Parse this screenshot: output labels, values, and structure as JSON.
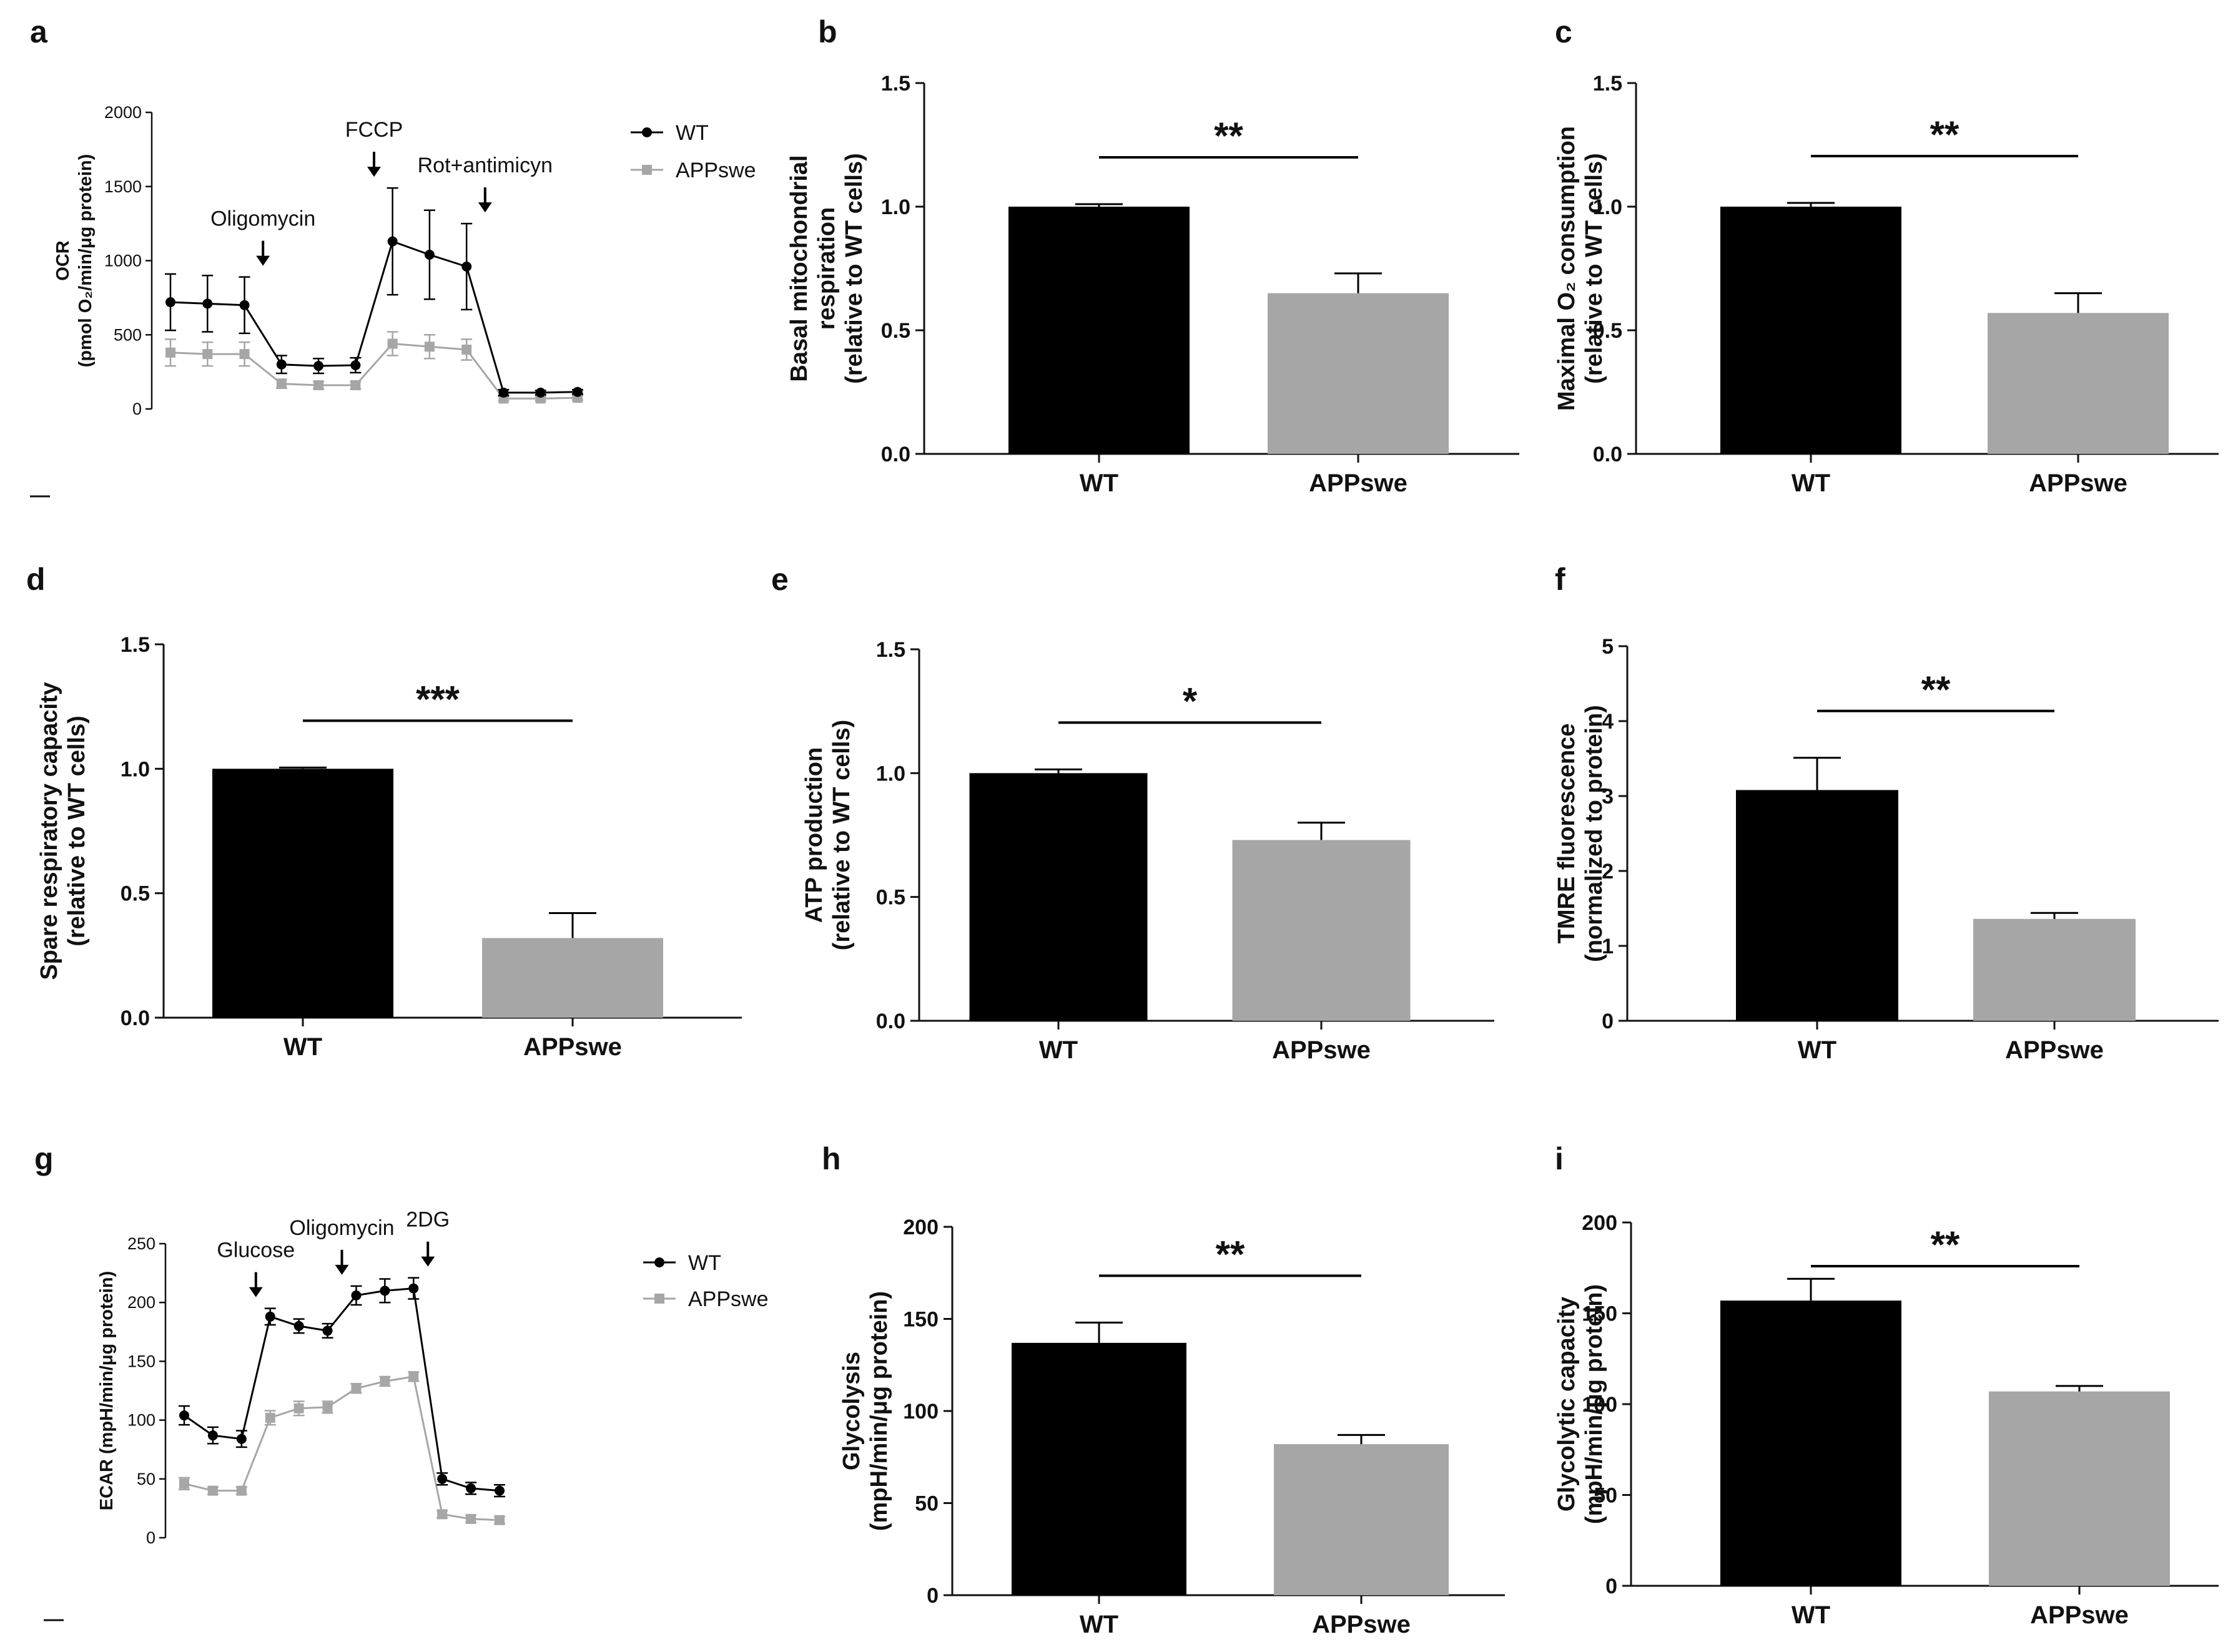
{
  "colors": {
    "wt": "#000000",
    "appswe": "#a6a6a6",
    "axis": "#111111"
  },
  "charts": [
    {
      "type": "line",
      "panel": "a",
      "ylabel_line1": "OCR",
      "ylabel_line2": "(pmol O₂/min/μg protein)",
      "ylim": [
        0,
        2000
      ],
      "yticks": [
        "0",
        "500",
        "1000",
        "1500",
        "2000"
      ],
      "x": [
        1,
        2,
        3,
        4,
        5,
        6,
        7,
        8,
        9,
        10,
        11,
        12
      ],
      "series": [
        {
          "name": "WT",
          "values": [
            720,
            710,
            700,
            300,
            290,
            295,
            1130,
            1040,
            960,
            110,
            110,
            115
          ],
          "errors": [
            190,
            190,
            190,
            60,
            50,
            50,
            360,
            300,
            290,
            20,
            15,
            15
          ]
        },
        {
          "name": "APPswe",
          "values": [
            380,
            370,
            370,
            170,
            160,
            160,
            440,
            420,
            400,
            70,
            70,
            75
          ],
          "errors": [
            90,
            80,
            80,
            30,
            25,
            25,
            80,
            80,
            70,
            15,
            15,
            15
          ]
        }
      ],
      "annotations": [
        {
          "label": "Oligomycin",
          "after_point": 3
        },
        {
          "label": "FCCP",
          "after_point": 6
        },
        {
          "label": "Rot+antimicyn",
          "after_point": 9
        }
      ]
    },
    {
      "type": "bar",
      "panel": "b",
      "ylabel": [
        "Basal mitochondrial",
        "respiration",
        "(relative to WT cells)"
      ],
      "categories": [
        "WT",
        "APPswe"
      ],
      "values": [
        1.0,
        0.65
      ],
      "errors": [
        0.01,
        0.08
      ],
      "ylim": [
        0,
        1.5
      ],
      "yticks": [
        "0.0",
        "0.5",
        "1.0",
        "1.5"
      ],
      "significance": "**"
    },
    {
      "type": "bar",
      "panel": "c",
      "ylabel": [
        "Maximal O₂ consumption",
        "(relative to WT cells)"
      ],
      "categories": [
        "WT",
        "APPswe"
      ],
      "values": [
        1.0,
        0.57
      ],
      "errors": [
        0.015,
        0.08
      ],
      "ylim": [
        0,
        1.5
      ],
      "yticks": [
        "0.0",
        "0.5",
        "1.0",
        "1.5"
      ],
      "significance": "**"
    },
    {
      "type": "bar",
      "panel": "d",
      "ylabel": [
        "Spare respiratory capacity",
        "(relative to WT cells)"
      ],
      "categories": [
        "WT",
        "APPswe"
      ],
      "values": [
        1.0,
        0.32
      ],
      "errors": [
        0.005,
        0.1
      ],
      "ylim": [
        0,
        1.5
      ],
      "yticks": [
        "0.0",
        "0.5",
        "1.0",
        "1.5"
      ],
      "significance": "***"
    },
    {
      "type": "bar",
      "panel": "e",
      "ylabel": [
        "ATP production",
        "(relative to WT cells)"
      ],
      "categories": [
        "WT",
        "APPswe"
      ],
      "values": [
        1.0,
        0.73
      ],
      "errors": [
        0.015,
        0.07
      ],
      "ylim": [
        0,
        1.5
      ],
      "yticks": [
        "0.0",
        "0.5",
        "1.0",
        "1.5"
      ],
      "significance": "*"
    },
    {
      "type": "bar",
      "panel": "f",
      "ylabel": [
        "TMRE fluorescence",
        "(normalized to protein)"
      ],
      "categories": [
        "WT",
        "APPswe"
      ],
      "values": [
        3.08,
        1.36
      ],
      "errors": [
        0.43,
        0.08
      ],
      "ylim": [
        0,
        5
      ],
      "yticks": [
        "0",
        "1",
        "2",
        "3",
        "4",
        "5"
      ],
      "significance": "**"
    },
    {
      "type": "line",
      "panel": "g",
      "ylabel_line1": "ECAR (mpH/min/μg protein)",
      "ylim": [
        0,
        250
      ],
      "yticks": [
        "0",
        "50",
        "100",
        "150",
        "200",
        "250"
      ],
      "x": [
        1,
        2,
        3,
        4,
        5,
        6,
        7,
        8,
        9,
        10,
        11,
        12
      ],
      "series": [
        {
          "name": "WT",
          "values": [
            104,
            87,
            84,
            188,
            180,
            176,
            206,
            210,
            212,
            50,
            42,
            40
          ],
          "errors": [
            8,
            7,
            7,
            7,
            6,
            6,
            8,
            10,
            9,
            5,
            5,
            5
          ]
        },
        {
          "name": "APPswe",
          "values": [
            46,
            40,
            40,
            102,
            110,
            111,
            127,
            133,
            137,
            20,
            16,
            15
          ],
          "errors": [
            5,
            3,
            3,
            6,
            6,
            5,
            4,
            4,
            4,
            3,
            3,
            3
          ]
        }
      ],
      "annotations": [
        {
          "label": "Glucose",
          "after_point": 3
        },
        {
          "label": "Oligomycin",
          "after_point": 6
        },
        {
          "label": "2DG",
          "after_point": 9
        }
      ]
    },
    {
      "type": "bar",
      "panel": "h",
      "ylabel": [
        "Glycolysis",
        "(mpH/min/μg protein)"
      ],
      "categories": [
        "WT",
        "APPswe"
      ],
      "values": [
        137,
        82
      ],
      "errors": [
        11,
        5
      ],
      "ylim": [
        0,
        200
      ],
      "yticks": [
        "0",
        "50",
        "100",
        "150",
        "200"
      ],
      "significance": "**"
    },
    {
      "type": "bar",
      "panel": "i",
      "ylabel": [
        "Glycolytic capacity",
        "(mpH/min/μg protein)"
      ],
      "categories": [
        "WT",
        "APPswe"
      ],
      "values": [
        157,
        107
      ],
      "errors": [
        12,
        3
      ],
      "ylim": [
        0,
        200
      ],
      "yticks": [
        "0",
        "50",
        "100",
        "150",
        "200"
      ],
      "significance": "**"
    }
  ]
}
